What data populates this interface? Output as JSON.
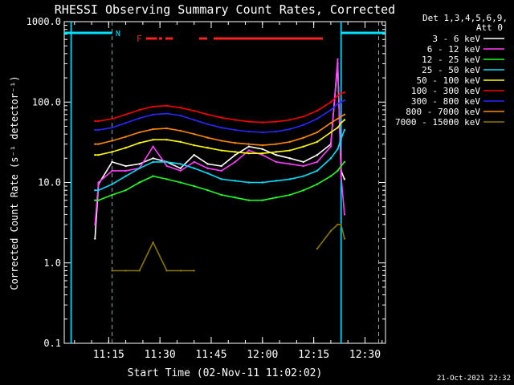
{
  "chart_data": {
    "type": "line",
    "title": "RHESSI Observing Summary Count Rates, Corrected",
    "xlabel": "Start Time (02-Nov-11 11:02:02)",
    "ylabel": "Corrected Count Rate (s⁻¹ detector⁻¹)",
    "yscale": "log",
    "ylim": [
      0.1,
      1000
    ],
    "xlim": [
      "11:02",
      "12:36"
    ],
    "x_ticks": [
      "11:15",
      "11:30",
      "11:45",
      "12:00",
      "12:15",
      "12:30"
    ],
    "y_ticks": [
      "0.1",
      "1.0",
      "10.0",
      "100.0",
      "1000.0"
    ],
    "legend_header": [
      "Det 1,3,4,5,6,9,",
      "Att 0"
    ],
    "footer_date": "21-Oct-2021 22:32",
    "flags": {
      "night_label": "N",
      "flare_label": "F"
    },
    "x_minutes": [
      11,
      12,
      16,
      20,
      24,
      28,
      32,
      36,
      40,
      44,
      48,
      52,
      56,
      60,
      64,
      68,
      72,
      76,
      80,
      82,
      83,
      84
    ],
    "series": [
      {
        "name": "3 - 6 keV",
        "color": "#ffffff",
        "values": [
          2,
          9.5,
          18,
          16,
          17,
          20,
          18,
          15,
          22,
          17,
          16,
          22,
          28,
          26,
          22,
          20,
          18,
          22,
          30,
          300,
          14,
          11
        ]
      },
      {
        "name": "6 - 12 keV",
        "color": "#ff3cff",
        "values": [
          3,
          10,
          14,
          14,
          15,
          28,
          16,
          14,
          18,
          15,
          14,
          18,
          25,
          22,
          18,
          17,
          16,
          18,
          28,
          340,
          12,
          4
        ]
      },
      {
        "name": "12 - 25 keV",
        "color": "#20ff20",
        "values": [
          6,
          6,
          7,
          8,
          10,
          12,
          11,
          10,
          9,
          8,
          7,
          6.5,
          6,
          6,
          6.5,
          7,
          8,
          9.5,
          12,
          14,
          16,
          18
        ]
      },
      {
        "name": "25 - 50 keV",
        "color": "#00e0ff",
        "values": [
          8,
          8,
          9.5,
          12,
          15,
          18,
          18,
          17,
          15,
          13,
          11,
          10.5,
          10,
          10,
          10.5,
          11,
          12,
          14,
          20,
          26,
          35,
          45
        ]
      },
      {
        "name": "50 - 100 keV",
        "color": "#ffff00",
        "values": [
          22,
          22,
          24,
          27,
          31,
          34,
          34,
          32,
          29,
          27,
          25,
          24,
          23,
          23,
          24,
          25,
          28,
          32,
          42,
          48,
          55,
          60
        ]
      },
      {
        "name": "100 - 300 keV",
        "color": "#ff0000",
        "values": [
          58,
          58,
          62,
          70,
          80,
          88,
          90,
          85,
          78,
          70,
          64,
          60,
          57,
          56,
          57,
          60,
          66,
          78,
          100,
          120,
          128,
          132
        ]
      },
      {
        "name": "300 - 800 keV",
        "color": "#2828ff",
        "values": [
          45,
          45,
          48,
          55,
          63,
          70,
          72,
          68,
          60,
          53,
          48,
          45,
          43,
          42,
          43,
          46,
          52,
          62,
          80,
          95,
          100,
          105
        ]
      },
      {
        "name": "800 - 7000 keV",
        "color": "#ff8800",
        "values": [
          30,
          30,
          33,
          37,
          42,
          46,
          47,
          44,
          40,
          36,
          33,
          31,
          30,
          29,
          30,
          32,
          36,
          42,
          55,
          62,
          66,
          70
        ]
      },
      {
        "name": "7000 - 15000 keV",
        "color": "#8c7800",
        "values": [
          null,
          null,
          0.8,
          0.8,
          0.8,
          1.8,
          0.8,
          0.8,
          0.8,
          null,
          null,
          null,
          null,
          null,
          null,
          null,
          null,
          1.5,
          2.5,
          3,
          3,
          2
        ]
      }
    ]
  }
}
